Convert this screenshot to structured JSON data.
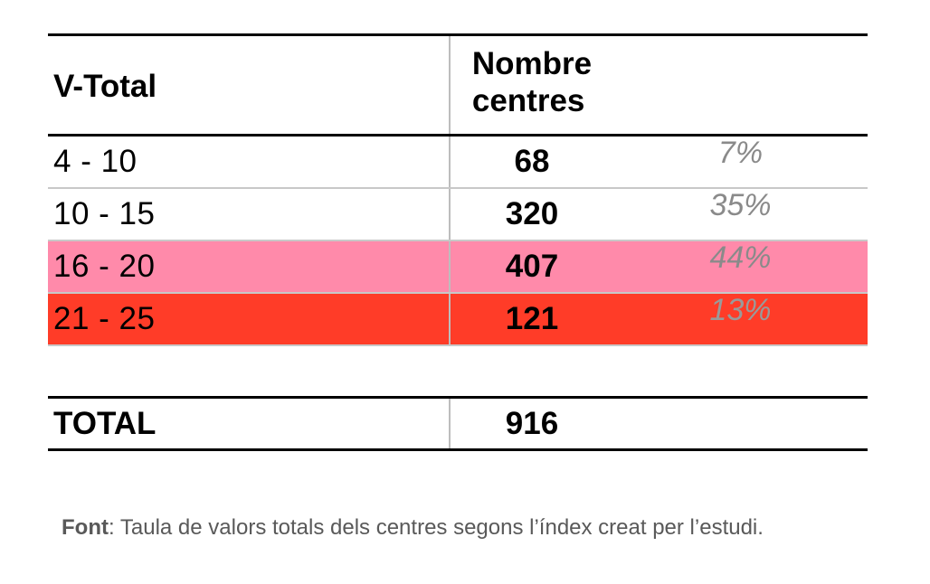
{
  "table": {
    "header": {
      "col1": "V-Total",
      "col2_line1": "Nombre",
      "col2_line2": "centres"
    },
    "rows": [
      {
        "range": "4 - 10",
        "count": "68",
        "pct": "7%"
      },
      {
        "range": "10 - 15",
        "count": "320",
        "pct": "35%"
      },
      {
        "range": "16 - 20",
        "count": "407",
        "pct": "44%"
      },
      {
        "range": "21 - 25",
        "count": "121",
        "pct": "13%"
      }
    ],
    "total": {
      "label": "TOTAL",
      "value": "916"
    },
    "colors": {
      "highlight_pink": "#ff8aaa",
      "highlight_red": "#ff3c28"
    }
  },
  "caption": {
    "label": "Font",
    "text": ": Taula de valors totals dels centres segons l’índex creat per l’estudi."
  }
}
